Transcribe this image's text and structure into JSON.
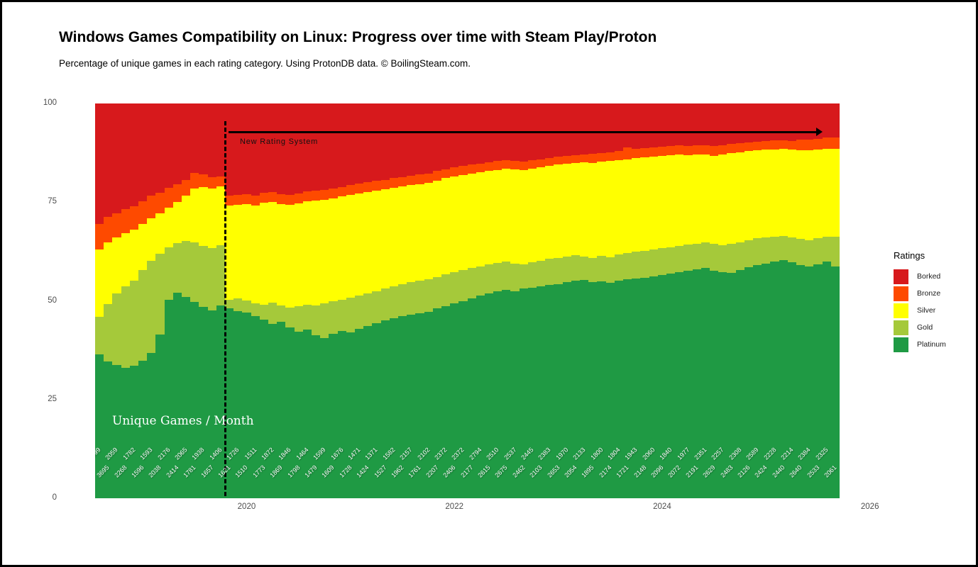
{
  "title": "Windows Games Compatibility on Linux: Progress over time with Steam Play/Proton",
  "subtitle": "Percentage of unique games in each rating category. Using ProtonDB data. © BoilingSteam.com.",
  "annotations": {
    "new_rating_system": "New Rating System",
    "unique_games": "Unique Games / Month"
  },
  "legend": {
    "title": "Ratings",
    "items": [
      {
        "label": "Borked",
        "color": "#D7191C"
      },
      {
        "label": "Bronze",
        "color": "#FE4A00"
      },
      {
        "label": "Silver",
        "color": "#FFFF00"
      },
      {
        "label": "Gold",
        "color": "#A5C93A"
      },
      {
        "label": "Platinum",
        "color": "#1F9A44"
      }
    ]
  },
  "axes": {
    "y_ticks": [
      {
        "label": "100",
        "value": 100
      },
      {
        "label": "75",
        "value": 75
      },
      {
        "label": "50",
        "value": 50
      },
      {
        "label": "25",
        "value": 25
      },
      {
        "label": "0",
        "value": 0
      }
    ],
    "x_ticks": [
      {
        "label": "2020",
        "month_index": 17
      },
      {
        "label": "2022",
        "month_index": 41
      },
      {
        "label": "2024",
        "month_index": 65
      },
      {
        "label": "2026",
        "month_index": 89
      }
    ]
  },
  "chart_data": {
    "type": "bar",
    "stacked": true,
    "unit": "percent",
    "ylim": [
      0,
      100
    ],
    "months": 86,
    "x_start_month": "2018-08",
    "x_end_month": "2025-09",
    "new_rating_system_boundary_month_index": 15,
    "stack_order_bottom_to_top": [
      "Platinum",
      "Gold",
      "Silver",
      "Bronze",
      "Borked"
    ],
    "series": [
      {
        "name": "Platinum",
        "color": "#1F9A44",
        "values": [
          36.5,
          34.6,
          33.8,
          33.0,
          33.6,
          34.8,
          36.8,
          41.5,
          50.3,
          52.1,
          51.0,
          49.8,
          48.4,
          47.6,
          48.9,
          48.2,
          47.4,
          47.0,
          46.1,
          45.2,
          44.1,
          44.7,
          43.3,
          42.2,
          42.7,
          41.3,
          40.6,
          41.7,
          42.4,
          42.1,
          42.9,
          43.6,
          44.3,
          45.0,
          45.6,
          46.2,
          46.5,
          46.9,
          47.3,
          48.1,
          48.7,
          49.3,
          49.9,
          50.6,
          51.3,
          51.9,
          52.4,
          52.7,
          52.5,
          53.1,
          53.3,
          53.7,
          54.0,
          54.3,
          54.7,
          55.1,
          55.3,
          54.7,
          55.0,
          54.5,
          55.2,
          55.4,
          55.7,
          55.9,
          56.2,
          56.6,
          56.9,
          57.3,
          57.7,
          58.0,
          58.3,
          57.7,
          57.3,
          57.1,
          57.9,
          58.5,
          59.1,
          59.5,
          59.9,
          60.3,
          59.7,
          59.1,
          58.7,
          59.3,
          59.9,
          58.7
        ]
      },
      {
        "name": "Gold",
        "color": "#A5C93A",
        "values": [
          9.5,
          14.6,
          18.0,
          20.6,
          21.6,
          23.0,
          23.4,
          20.5,
          13.3,
          12.5,
          14.2,
          15.1,
          15.6,
          15.8,
          15.2,
          2.1,
          3.3,
          3.1,
          3.3,
          3.8,
          5.5,
          4.2,
          5.0,
          6.4,
          6.4,
          7.5,
          8.8,
          8.2,
          7.9,
          8.7,
          8.4,
          8.3,
          8.2,
          8.1,
          8.1,
          8.0,
          8.2,
          8.2,
          8.2,
          8.0,
          8.0,
          8.0,
          7.9,
          7.7,
          7.5,
          7.3,
          7.2,
          7.2,
          7.0,
          6.2,
          6.4,
          6.5,
          6.6,
          6.6,
          6.5,
          6.4,
          6.0,
          6.2,
          6.4,
          6.6,
          6.5,
          6.7,
          6.7,
          6.8,
          6.8,
          6.7,
          6.7,
          6.6,
          6.5,
          6.5,
          6.6,
          6.8,
          6.8,
          7.3,
          7.0,
          6.9,
          6.8,
          6.6,
          6.4,
          6.2,
          6.4,
          6.6,
          6.7,
          6.6,
          6.4,
          7.5
        ]
      },
      {
        "name": "Silver",
        "color": "#FFFF00",
        "values": [
          17.0,
          15.6,
          14.2,
          13.6,
          12.8,
          11.6,
          10.8,
          10.2,
          10.0,
          10.5,
          11.4,
          13.5,
          14.8,
          15.0,
          14.9,
          23.8,
          23.6,
          24.5,
          24.7,
          25.8,
          25.5,
          25.6,
          26.0,
          26.1,
          26.1,
          26.6,
          26.2,
          26.1,
          26.1,
          26.1,
          25.9,
          25.7,
          25.5,
          25.2,
          25.0,
          24.8,
          24.6,
          24.5,
          24.4,
          24.4,
          24.4,
          24.2,
          24.1,
          24.0,
          23.8,
          23.7,
          23.6,
          23.6,
          23.8,
          23.8,
          23.8,
          23.7,
          23.6,
          23.6,
          23.5,
          23.4,
          23.8,
          24.0,
          23.8,
          24.3,
          24.0,
          23.8,
          23.7,
          23.6,
          23.5,
          23.4,
          23.3,
          23.1,
          22.7,
          22.6,
          22.1,
          22.3,
          23.0,
          23.0,
          22.8,
          22.5,
          22.2,
          22.2,
          22.1,
          22.0,
          22.2,
          22.4,
          22.8,
          22.5,
          22.3,
          22.3
        ]
      },
      {
        "name": "Bronze",
        "color": "#FE4A00",
        "values": [
          6.5,
          6.4,
          6.1,
          6.0,
          6.0,
          5.9,
          5.6,
          5.2,
          5.0,
          4.5,
          4.1,
          4.0,
          3.2,
          3.0,
          2.6,
          2.5,
          2.6,
          2.5,
          2.6,
          2.5,
          2.5,
          2.5,
          2.5,
          2.5,
          2.5,
          2.5,
          2.5,
          2.5,
          2.5,
          2.4,
          2.5,
          2.5,
          2.4,
          2.4,
          2.4,
          2.4,
          2.4,
          2.4,
          2.4,
          2.4,
          2.3,
          2.3,
          2.3,
          2.2,
          2.2,
          2.2,
          2.2,
          2.1,
          2.1,
          2.1,
          2.1,
          2.0,
          2.0,
          2.0,
          2.0,
          2.0,
          2.0,
          2.4,
          2.3,
          2.3,
          2.2,
          2.9,
          2.4,
          2.4,
          2.4,
          2.4,
          2.3,
          2.4,
          2.4,
          2.4,
          2.4,
          2.4,
          2.4,
          2.3,
          2.2,
          2.2,
          2.2,
          2.2,
          2.2,
          2.2,
          2.2,
          2.7,
          2.7,
          2.7,
          2.7,
          2.9
        ]
      },
      {
        "name": "Borked",
        "color": "#D7191C",
        "values": [
          30.5,
          28.8,
          27.9,
          26.8,
          26.0,
          24.7,
          23.4,
          22.6,
          21.4,
          20.4,
          19.3,
          17.6,
          18.0,
          18.6,
          18.4,
          23.4,
          23.1,
          22.9,
          23.3,
          22.7,
          22.4,
          23.0,
          23.2,
          22.8,
          22.3,
          22.1,
          21.9,
          21.5,
          21.1,
          20.7,
          20.3,
          19.9,
          19.6,
          19.3,
          18.9,
          18.6,
          18.3,
          18.0,
          17.7,
          17.1,
          16.6,
          16.2,
          15.8,
          15.5,
          15.2,
          14.9,
          14.6,
          14.4,
          14.6,
          14.8,
          14.4,
          14.1,
          13.8,
          13.5,
          13.3,
          13.1,
          12.9,
          12.7,
          12.5,
          12.3,
          12.1,
          11.2,
          11.5,
          11.3,
          11.1,
          10.9,
          10.8,
          10.6,
          10.7,
          10.5,
          10.6,
          10.8,
          10.5,
          10.3,
          10.1,
          9.9,
          9.7,
          9.5,
          9.4,
          9.3,
          9.5,
          9.2,
          9.1,
          8.9,
          8.7,
          8.6
        ]
      }
    ],
    "unique_games_per_month": [
      3099,
      3695,
      2059,
      2268,
      1782,
      1596,
      1593,
      2038,
      2176,
      2414,
      2065,
      1781,
      1938,
      1657,
      1406,
      1621,
      1726,
      1510,
      1511,
      1773,
      1872,
      1869,
      1846,
      1798,
      1464,
      1479,
      1599,
      1609,
      1676,
      1728,
      1471,
      1424,
      1371,
      1527,
      1582,
      1962,
      2157,
      1761,
      2102,
      2207,
      2372,
      2406,
      2372,
      2177,
      2794,
      2615,
      2510,
      2675,
      2537,
      2462,
      2445,
      2103,
      2383,
      2653,
      1970,
      2054,
      2133,
      1895,
      1800,
      2174,
      1804,
      1721,
      1943,
      2148,
      2060,
      2096,
      1840,
      2072,
      1977,
      2191,
      2351,
      2629,
      2257,
      2483,
      2308,
      2126,
      2589,
      2424,
      2228,
      2440,
      2214,
      2640,
      2384,
      2533,
      2325,
      2061
    ]
  }
}
